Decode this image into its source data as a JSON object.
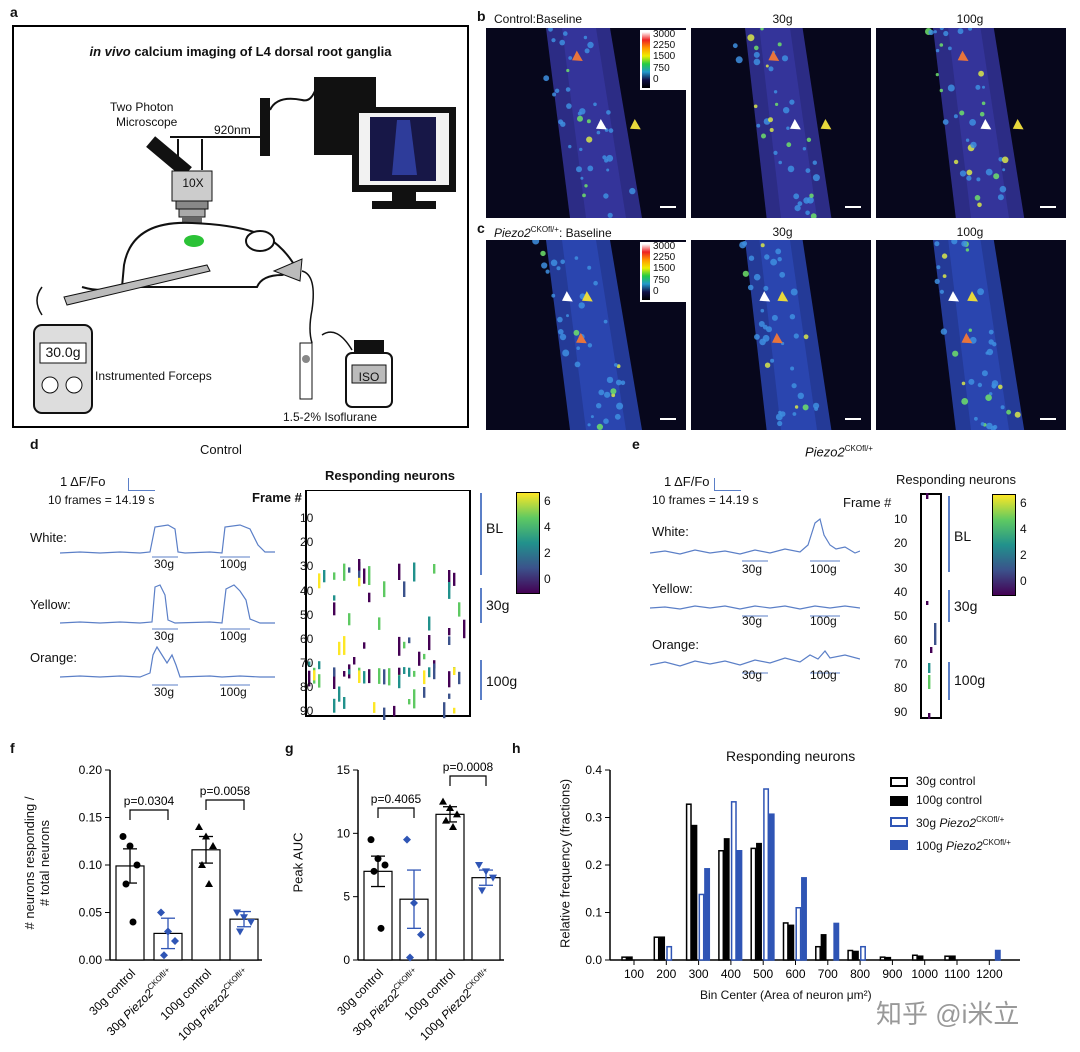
{
  "panels": {
    "a": "a",
    "b": "b",
    "c": "c",
    "d": "d",
    "e": "e",
    "f": "f",
    "g": "g",
    "h": "h"
  },
  "panel_a": {
    "title_italic": "in vivo",
    "title_rest": " calcium imaging of L4 dorsal root ganglia",
    "microscope": "Two Photon Microscope",
    "microscope_l1": "Two Photon",
    "microscope_l2": "Microscope",
    "wavelength": "920nm",
    "objective": "10X",
    "force_readout": "30.0g",
    "forceps_label": "Instrumented Forceps",
    "iso_label": "ISO",
    "isoflurane": "1.5-2% Isoflurane"
  },
  "panel_b": {
    "row_label": "Control:Baseline",
    "cols": [
      "30g",
      "100g"
    ],
    "colorbar_ticks": [
      "3000",
      "2250",
      "1500",
      "750",
      "0"
    ]
  },
  "panel_c": {
    "row_label_italic": "Piezo2",
    "row_label_sup": "CKOfl/+",
    "row_label_rest": ": Baseline",
    "cols": [
      "30g",
      "100g"
    ],
    "colorbar_ticks": [
      "3000",
      "2250",
      "1500",
      "750",
      "0"
    ]
  },
  "panel_d": {
    "title": "Control",
    "scale_y": "1 ΔF/Fo",
    "scale_x": "10 frames = 14.19 s",
    "traces": [
      "White:",
      "Yellow:",
      "Orange:"
    ],
    "stim": [
      "30g",
      "100g"
    ],
    "heatmap_title": "Responding neurons",
    "frame_label": "Frame #",
    "y_ticks": [
      "10",
      "20",
      "30",
      "40",
      "50",
      "60",
      "70",
      "80",
      "90"
    ],
    "epochs": [
      "BL",
      "30g",
      "100g"
    ],
    "cbar_ticks": [
      "6",
      "4",
      "2",
      "0"
    ]
  },
  "panel_e": {
    "title_italic": "Piezo2",
    "title_sup": "CKOfl/+",
    "scale_y": "1 ΔF/Fo",
    "scale_x": "10 frames = 14.19 s",
    "traces": [
      "White:",
      "Yellow:",
      "Orange:"
    ],
    "stim": [
      "30g",
      "100g"
    ],
    "heatmap_title": "Responding neurons",
    "frame_label": "Frame #",
    "y_ticks": [
      "10",
      "20",
      "30",
      "40",
      "50",
      "60",
      "70",
      "80",
      "90"
    ],
    "epochs": [
      "BL",
      "30g",
      "100g"
    ],
    "cbar_ticks": [
      "6",
      "4",
      "2",
      "0"
    ]
  },
  "chart_data": [
    {
      "panel": "f",
      "type": "bar",
      "ylabel": "# neurons responding / # total neurons",
      "ylabel_l1": "# neurons responding /",
      "ylabel_l2": "# total neurons",
      "ylim": [
        0,
        0.2
      ],
      "yticks": [
        "0.00",
        "0.05",
        "0.10",
        "0.15",
        "0.20"
      ],
      "categories": [
        "30g control",
        "30g Piezo2CKOfl/+",
        "100g control",
        "100g Piezo2CKOfl/+"
      ],
      "values": [
        0.099,
        0.028,
        0.116,
        0.043
      ],
      "sem": [
        0.018,
        0.016,
        0.014,
        0.008
      ],
      "points": [
        [
          0.13,
          0.12,
          0.1,
          0.08,
          0.04
        ],
        [
          0.05,
          0.03,
          0.02,
          0.005
        ],
        [
          0.14,
          0.13,
          0.12,
          0.1,
          0.08
        ],
        [
          0.05,
          0.045,
          0.04,
          0.03
        ]
      ],
      "markers": [
        "circle",
        "diamond",
        "triangle",
        "triangle-down"
      ],
      "comparisons": [
        {
          "label": "p=0.0304",
          "pair": [
            0,
            1
          ]
        },
        {
          "label": "p=0.0058",
          "pair": [
            2,
            3
          ]
        }
      ]
    },
    {
      "panel": "g",
      "type": "bar",
      "ylabel": "Peak AUC",
      "ylim": [
        0,
        15
      ],
      "yticks": [
        "0",
        "5",
        "10",
        "15"
      ],
      "categories": [
        "30g control",
        "30g Piezo2CKOfl/+",
        "100g control",
        "100g Piezo2CKOfl/+"
      ],
      "values": [
        7.0,
        4.8,
        11.5,
        6.5
      ],
      "sem": [
        1.2,
        2.3,
        0.6,
        0.6
      ],
      "points": [
        [
          9.5,
          8.0,
          7.5,
          7.0,
          2.5
        ],
        [
          9.5,
          4.5,
          2.0,
          0.2
        ],
        [
          12.5,
          12.0,
          11.5,
          11.0,
          10.5
        ],
        [
          7.5,
          7.0,
          6.5,
          5.5
        ]
      ],
      "markers": [
        "circle",
        "diamond",
        "triangle",
        "triangle-down"
      ],
      "comparisons": [
        {
          "label": "p=0.4065",
          "pair": [
            0,
            1
          ]
        },
        {
          "label": "p=0.0008",
          "pair": [
            2,
            3
          ]
        }
      ]
    },
    {
      "panel": "h",
      "type": "bar",
      "title": "Responding neurons",
      "xlabel": "Bin Center (Area of neuron μm²)",
      "ylabel": "Relative frequency (fractions)",
      "ylim": [
        0,
        0.4
      ],
      "yticks": [
        "0.0",
        "0.1",
        "0.2",
        "0.3",
        "0.4"
      ],
      "categories": [
        "100",
        "200",
        "300",
        "400",
        "500",
        "600",
        "700",
        "800",
        "900",
        "1000",
        "1100",
        "1200"
      ],
      "series": [
        {
          "name": "30g control",
          "values": [
            0.006,
            0.048,
            0.328,
            0.23,
            0.235,
            0.078,
            0.028,
            0.02,
            0.006,
            0.01,
            0.008,
            0
          ]
        },
        {
          "name": "100g control",
          "values": [
            0.006,
            0.048,
            0.283,
            0.255,
            0.245,
            0.073,
            0.053,
            0.018,
            0.005,
            0.008,
            0.008,
            0
          ]
        },
        {
          "name": "30g Piezo2CKOfl/+",
          "values": [
            0,
            0.028,
            0.138,
            0.333,
            0.36,
            0.11,
            0,
            0.028,
            0,
            0,
            0,
            0
          ]
        },
        {
          "name": "100g Piezo2CKOfl/+",
          "values": [
            0,
            0,
            0.192,
            0.23,
            0.307,
            0.173,
            0.077,
            0,
            0,
            0,
            0,
            0.02
          ]
        }
      ],
      "legend_entries": [
        {
          "text": "30g control",
          "italic": "",
          "sup": ""
        },
        {
          "text": "100g control",
          "italic": "",
          "sup": ""
        },
        {
          "text": "30g ",
          "italic": "Piezo2",
          "sup": "CKOfl/+"
        },
        {
          "text": "100g ",
          "italic": "Piezo2",
          "sup": "CKOfl/+"
        }
      ],
      "legend": "top-right"
    }
  ],
  "watermark": "知乎 @i米立",
  "colors": {
    "trace": "#5b7fc7",
    "control": "#000000",
    "cko": "#2f55b5",
    "cko_light": "#6f8fd8"
  }
}
